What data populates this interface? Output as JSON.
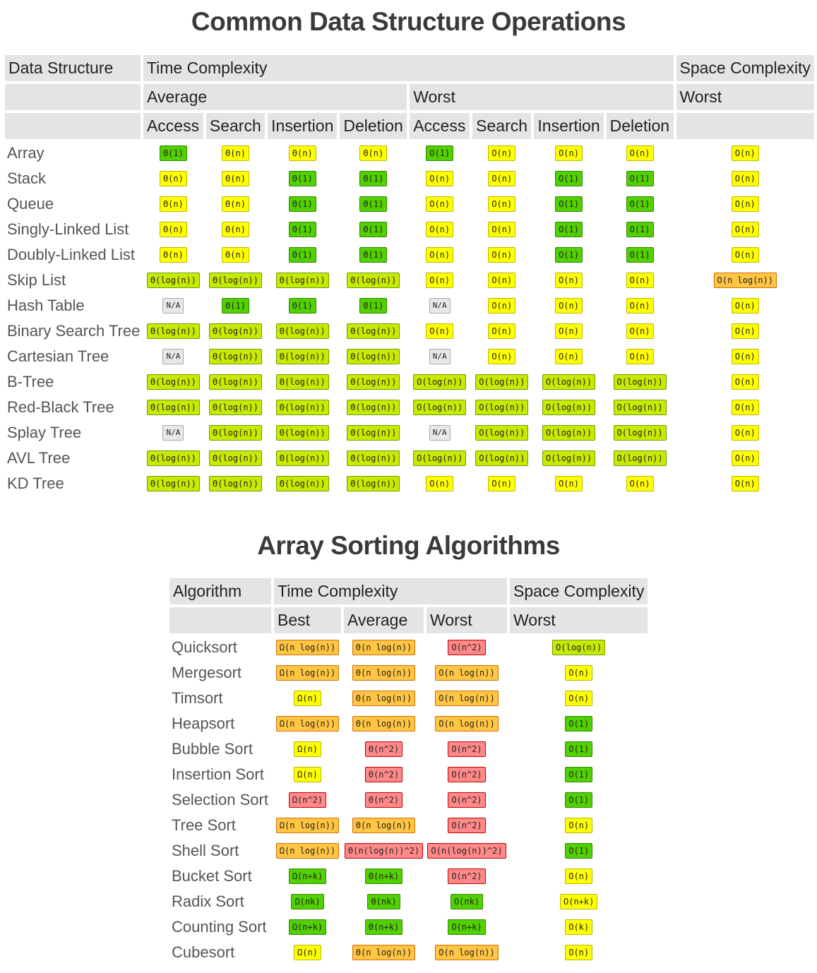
{
  "ds_section": {
    "title": "Common Data Structure Operations",
    "headers": {
      "data_structure": "Data Structure",
      "time_complexity": "Time Complexity",
      "space_complexity": "Space Complexity",
      "average": "Average",
      "worst": "Worst",
      "space_worst": "Worst",
      "ops": [
        "Access",
        "Search",
        "Insertion",
        "Deletion",
        "Access",
        "Search",
        "Insertion",
        "Deletion"
      ]
    },
    "rows": [
      {
        "name": "Array",
        "cells": [
          [
            "Θ(1)",
            "green"
          ],
          [
            "Θ(n)",
            "yellow"
          ],
          [
            "Θ(n)",
            "yellow"
          ],
          [
            "Θ(n)",
            "yellow"
          ],
          [
            "O(1)",
            "green"
          ],
          [
            "O(n)",
            "yellow"
          ],
          [
            "O(n)",
            "yellow"
          ],
          [
            "O(n)",
            "yellow"
          ],
          [
            "O(n)",
            "yellow"
          ]
        ]
      },
      {
        "name": "Stack",
        "cells": [
          [
            "Θ(n)",
            "yellow"
          ],
          [
            "Θ(n)",
            "yellow"
          ],
          [
            "Θ(1)",
            "green"
          ],
          [
            "Θ(1)",
            "green"
          ],
          [
            "O(n)",
            "yellow"
          ],
          [
            "O(n)",
            "yellow"
          ],
          [
            "O(1)",
            "green"
          ],
          [
            "O(1)",
            "green"
          ],
          [
            "O(n)",
            "yellow"
          ]
        ]
      },
      {
        "name": "Queue",
        "cells": [
          [
            "Θ(n)",
            "yellow"
          ],
          [
            "Θ(n)",
            "yellow"
          ],
          [
            "Θ(1)",
            "green"
          ],
          [
            "Θ(1)",
            "green"
          ],
          [
            "O(n)",
            "yellow"
          ],
          [
            "O(n)",
            "yellow"
          ],
          [
            "O(1)",
            "green"
          ],
          [
            "O(1)",
            "green"
          ],
          [
            "O(n)",
            "yellow"
          ]
        ]
      },
      {
        "name": "Singly-Linked List",
        "cells": [
          [
            "Θ(n)",
            "yellow"
          ],
          [
            "Θ(n)",
            "yellow"
          ],
          [
            "Θ(1)",
            "green"
          ],
          [
            "Θ(1)",
            "green"
          ],
          [
            "O(n)",
            "yellow"
          ],
          [
            "O(n)",
            "yellow"
          ],
          [
            "O(1)",
            "green"
          ],
          [
            "O(1)",
            "green"
          ],
          [
            "O(n)",
            "yellow"
          ]
        ]
      },
      {
        "name": "Doubly-Linked List",
        "cells": [
          [
            "Θ(n)",
            "yellow"
          ],
          [
            "Θ(n)",
            "yellow"
          ],
          [
            "Θ(1)",
            "green"
          ],
          [
            "Θ(1)",
            "green"
          ],
          [
            "O(n)",
            "yellow"
          ],
          [
            "O(n)",
            "yellow"
          ],
          [
            "O(1)",
            "green"
          ],
          [
            "O(1)",
            "green"
          ],
          [
            "O(n)",
            "yellow"
          ]
        ]
      },
      {
        "name": "Skip List",
        "cells": [
          [
            "Θ(log(n))",
            "lgreen"
          ],
          [
            "Θ(log(n))",
            "lgreen"
          ],
          [
            "Θ(log(n))",
            "lgreen"
          ],
          [
            "Θ(log(n))",
            "lgreen"
          ],
          [
            "O(n)",
            "yellow"
          ],
          [
            "O(n)",
            "yellow"
          ],
          [
            "O(n)",
            "yellow"
          ],
          [
            "O(n)",
            "yellow"
          ],
          [
            "O(n log(n))",
            "orange"
          ]
        ]
      },
      {
        "name": "Hash Table",
        "cells": [
          [
            "N/A",
            "gray"
          ],
          [
            "Θ(1)",
            "green"
          ],
          [
            "Θ(1)",
            "green"
          ],
          [
            "Θ(1)",
            "green"
          ],
          [
            "N/A",
            "gray"
          ],
          [
            "O(n)",
            "yellow"
          ],
          [
            "O(n)",
            "yellow"
          ],
          [
            "O(n)",
            "yellow"
          ],
          [
            "O(n)",
            "yellow"
          ]
        ]
      },
      {
        "name": "Binary Search Tree",
        "cells": [
          [
            "Θ(log(n))",
            "lgreen"
          ],
          [
            "Θ(log(n))",
            "lgreen"
          ],
          [
            "Θ(log(n))",
            "lgreen"
          ],
          [
            "Θ(log(n))",
            "lgreen"
          ],
          [
            "O(n)",
            "yellow"
          ],
          [
            "O(n)",
            "yellow"
          ],
          [
            "O(n)",
            "yellow"
          ],
          [
            "O(n)",
            "yellow"
          ],
          [
            "O(n)",
            "yellow"
          ]
        ]
      },
      {
        "name": "Cartesian Tree",
        "cells": [
          [
            "N/A",
            "gray"
          ],
          [
            "Θ(log(n))",
            "lgreen"
          ],
          [
            "Θ(log(n))",
            "lgreen"
          ],
          [
            "Θ(log(n))",
            "lgreen"
          ],
          [
            "N/A",
            "gray"
          ],
          [
            "O(n)",
            "yellow"
          ],
          [
            "O(n)",
            "yellow"
          ],
          [
            "O(n)",
            "yellow"
          ],
          [
            "O(n)",
            "yellow"
          ]
        ]
      },
      {
        "name": "B-Tree",
        "cells": [
          [
            "Θ(log(n))",
            "lgreen"
          ],
          [
            "Θ(log(n))",
            "lgreen"
          ],
          [
            "Θ(log(n))",
            "lgreen"
          ],
          [
            "Θ(log(n))",
            "lgreen"
          ],
          [
            "O(log(n))",
            "lgreen"
          ],
          [
            "O(log(n))",
            "lgreen"
          ],
          [
            "O(log(n))",
            "lgreen"
          ],
          [
            "O(log(n))",
            "lgreen"
          ],
          [
            "O(n)",
            "yellow"
          ]
        ]
      },
      {
        "name": "Red-Black Tree",
        "cells": [
          [
            "Θ(log(n))",
            "lgreen"
          ],
          [
            "Θ(log(n))",
            "lgreen"
          ],
          [
            "Θ(log(n))",
            "lgreen"
          ],
          [
            "Θ(log(n))",
            "lgreen"
          ],
          [
            "O(log(n))",
            "lgreen"
          ],
          [
            "O(log(n))",
            "lgreen"
          ],
          [
            "O(log(n))",
            "lgreen"
          ],
          [
            "O(log(n))",
            "lgreen"
          ],
          [
            "O(n)",
            "yellow"
          ]
        ]
      },
      {
        "name": "Splay Tree",
        "cells": [
          [
            "N/A",
            "gray"
          ],
          [
            "Θ(log(n))",
            "lgreen"
          ],
          [
            "Θ(log(n))",
            "lgreen"
          ],
          [
            "Θ(log(n))",
            "lgreen"
          ],
          [
            "N/A",
            "gray"
          ],
          [
            "O(log(n))",
            "lgreen"
          ],
          [
            "O(log(n))",
            "lgreen"
          ],
          [
            "O(log(n))",
            "lgreen"
          ],
          [
            "O(n)",
            "yellow"
          ]
        ]
      },
      {
        "name": "AVL Tree",
        "cells": [
          [
            "Θ(log(n))",
            "lgreen"
          ],
          [
            "Θ(log(n))",
            "lgreen"
          ],
          [
            "Θ(log(n))",
            "lgreen"
          ],
          [
            "Θ(log(n))",
            "lgreen"
          ],
          [
            "O(log(n))",
            "lgreen"
          ],
          [
            "O(log(n))",
            "lgreen"
          ],
          [
            "O(log(n))",
            "lgreen"
          ],
          [
            "O(log(n))",
            "lgreen"
          ],
          [
            "O(n)",
            "yellow"
          ]
        ]
      },
      {
        "name": "KD Tree",
        "cells": [
          [
            "Θ(log(n))",
            "lgreen"
          ],
          [
            "Θ(log(n))",
            "lgreen"
          ],
          [
            "Θ(log(n))",
            "lgreen"
          ],
          [
            "Θ(log(n))",
            "lgreen"
          ],
          [
            "O(n)",
            "yellow"
          ],
          [
            "O(n)",
            "yellow"
          ],
          [
            "O(n)",
            "yellow"
          ],
          [
            "O(n)",
            "yellow"
          ],
          [
            "O(n)",
            "yellow"
          ]
        ]
      }
    ]
  },
  "sort_section": {
    "title": "Array Sorting Algorithms",
    "headers": {
      "algorithm": "Algorithm",
      "time_complexity": "Time Complexity",
      "space_complexity": "Space Complexity",
      "best": "Best",
      "average": "Average",
      "worst": "Worst",
      "space_worst": "Worst"
    },
    "rows": [
      {
        "name": "Quicksort",
        "cells": [
          [
            "Ω(n log(n))",
            "orange"
          ],
          [
            "Θ(n log(n))",
            "orange"
          ],
          [
            "O(n^2)",
            "red"
          ],
          [
            "O(log(n))",
            "lgreen"
          ]
        ]
      },
      {
        "name": "Mergesort",
        "cells": [
          [
            "Ω(n log(n))",
            "orange"
          ],
          [
            "Θ(n log(n))",
            "orange"
          ],
          [
            "O(n log(n))",
            "orange"
          ],
          [
            "O(n)",
            "yellow"
          ]
        ]
      },
      {
        "name": "Timsort",
        "cells": [
          [
            "Ω(n)",
            "yellow"
          ],
          [
            "Θ(n log(n))",
            "orange"
          ],
          [
            "O(n log(n))",
            "orange"
          ],
          [
            "O(n)",
            "yellow"
          ]
        ]
      },
      {
        "name": "Heapsort",
        "cells": [
          [
            "Ω(n log(n))",
            "orange"
          ],
          [
            "Θ(n log(n))",
            "orange"
          ],
          [
            "O(n log(n))",
            "orange"
          ],
          [
            "O(1)",
            "green"
          ]
        ]
      },
      {
        "name": "Bubble Sort",
        "cells": [
          [
            "Ω(n)",
            "yellow"
          ],
          [
            "Θ(n^2)",
            "red"
          ],
          [
            "O(n^2)",
            "red"
          ],
          [
            "O(1)",
            "green"
          ]
        ]
      },
      {
        "name": "Insertion Sort",
        "cells": [
          [
            "Ω(n)",
            "yellow"
          ],
          [
            "Θ(n^2)",
            "red"
          ],
          [
            "O(n^2)",
            "red"
          ],
          [
            "O(1)",
            "green"
          ]
        ]
      },
      {
        "name": "Selection Sort",
        "cells": [
          [
            "Ω(n^2)",
            "red"
          ],
          [
            "Θ(n^2)",
            "red"
          ],
          [
            "O(n^2)",
            "red"
          ],
          [
            "O(1)",
            "green"
          ]
        ]
      },
      {
        "name": "Tree Sort",
        "cells": [
          [
            "Ω(n log(n))",
            "orange"
          ],
          [
            "Θ(n log(n))",
            "orange"
          ],
          [
            "O(n^2)",
            "red"
          ],
          [
            "O(n)",
            "yellow"
          ]
        ]
      },
      {
        "name": "Shell Sort",
        "cells": [
          [
            "Ω(n log(n))",
            "orange"
          ],
          [
            "Θ(n(log(n))^2)",
            "red"
          ],
          [
            "O(n(log(n))^2)",
            "red"
          ],
          [
            "O(1)",
            "green"
          ]
        ]
      },
      {
        "name": "Bucket Sort",
        "cells": [
          [
            "Ω(n+k)",
            "green"
          ],
          [
            "Θ(n+k)",
            "green"
          ],
          [
            "O(n^2)",
            "red"
          ],
          [
            "O(n)",
            "yellow"
          ]
        ]
      },
      {
        "name": "Radix Sort",
        "cells": [
          [
            "Ω(nk)",
            "green"
          ],
          [
            "Θ(nk)",
            "green"
          ],
          [
            "O(nk)",
            "green"
          ],
          [
            "O(n+k)",
            "yellow"
          ]
        ]
      },
      {
        "name": "Counting Sort",
        "cells": [
          [
            "Ω(n+k)",
            "green"
          ],
          [
            "Θ(n+k)",
            "green"
          ],
          [
            "O(n+k)",
            "green"
          ],
          [
            "O(k)",
            "yellow"
          ]
        ]
      },
      {
        "name": "Cubesort",
        "cells": [
          [
            "Ω(n)",
            "yellow"
          ],
          [
            "Θ(n log(n))",
            "orange"
          ],
          [
            "O(n log(n))",
            "orange"
          ],
          [
            "O(n)",
            "yellow"
          ]
        ]
      }
    ]
  }
}
